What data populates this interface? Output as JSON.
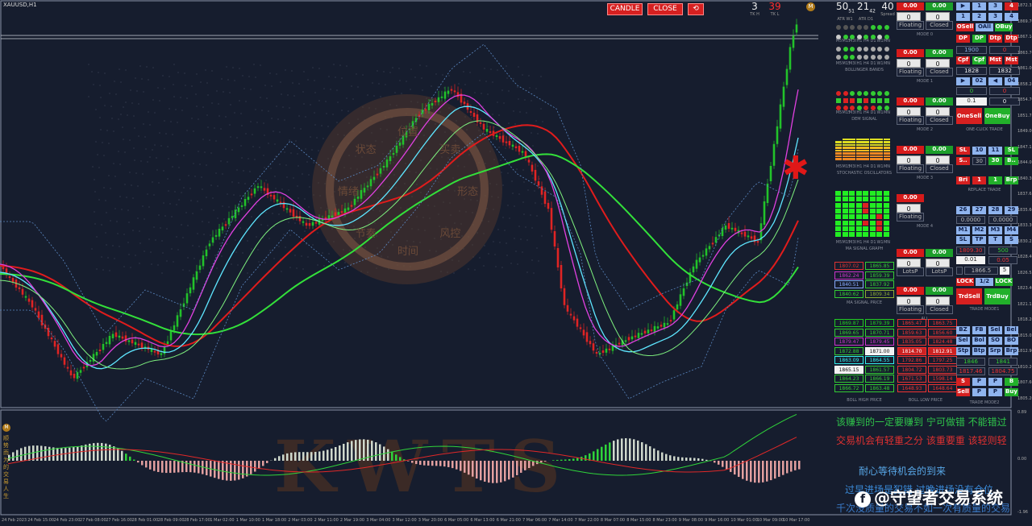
{
  "symbol": "XAUUSD,H1",
  "toolbar": {
    "candle": "CANDLE",
    "close": "CLOSE"
  },
  "stats": [
    {
      "big": "50",
      "sub": "51",
      "lbl": "ATR W1",
      "color": "white"
    },
    {
      "big": "21",
      "sub": "42",
      "lbl": "ATR D1",
      "color": "white"
    },
    {
      "big": "40",
      "sub": "",
      "lbl": "Spread",
      "color": "white"
    },
    {
      "big": "3",
      "sub": "",
      "lbl": "TK H",
      "color": "white"
    },
    {
      "big": "39",
      "sub": "",
      "lbl": "TK L",
      "color": "red"
    }
  ],
  "modes": [
    {
      "red": "0.00",
      "green": "0.00",
      "a": "0",
      "b": "0",
      "float": "Floating",
      "closed": "Closed",
      "label": "MODE 0"
    },
    {
      "red": "0.00",
      "green": "0.00",
      "a": "0",
      "b": "0",
      "float": "Floating",
      "closed": "Closed",
      "label": "MODE 1"
    },
    {
      "red": "0.00",
      "green": "0.00",
      "a": "0",
      "b": "0",
      "float": "Floating",
      "closed": "Closed",
      "label": "MODE 2"
    },
    {
      "red": "0.00",
      "green": "0.00",
      "a": "0",
      "b": "0",
      "float": "Floating",
      "closed": "Closed",
      "label": "MODE 3"
    },
    {
      "red": "0.00",
      "green": "",
      "a": "0",
      "b": "",
      "float": "Floating",
      "closed": "",
      "label": "MODE 4"
    },
    {
      "red": "0.00",
      "green": "0.00",
      "a": "0",
      "b": "0",
      "float": "LotsP",
      "closed": "LotsP",
      "label": ""
    },
    {
      "red": "0.00",
      "green": "0.00",
      "a": "0",
      "b": "0",
      "float": "Floating",
      "closed": "Closed",
      "label": "ALL"
    }
  ],
  "section_labels": {
    "ma": "BOLLINGER BANDS",
    "dem": "DEM  SIGNAL",
    "stoch": "STOCHASTIC OSCILLATORS",
    "graph": "MA SIGNAL GRAPH",
    "price": "MA SIGNAL PRICE",
    "bh": "BOLL HIGH PRICE",
    "bl": "BOLL LOW PRICE",
    "oneclick": "ONE-CLICK  TRADE",
    "replace": "REPLACE  TRADE",
    "trade1": "TRADE MODE1",
    "trade2": "TRADE MODE2"
  },
  "tf_labels": [
    "M5",
    "M15",
    "M30",
    "H1",
    "H4",
    "D1",
    "W1",
    "MN"
  ],
  "right": {
    "row1": [
      "▶",
      "1",
      "3",
      "4"
    ],
    "row2": [
      "1",
      "2",
      "3",
      "4"
    ],
    "row3": [
      "OSell",
      "OAll",
      "OBuy"
    ],
    "row4": [
      "DP",
      "DP",
      "Dtp",
      "Dtp"
    ],
    "v1900": "1900",
    "v0a": "0",
    "v1828": "1828",
    "v1832": "1832",
    "row5": [
      "Cpf",
      "Cpf",
      "Mst",
      "Mst"
    ],
    "row6": [
      "▶",
      "02",
      "◀",
      "04"
    ],
    "v0b": "0",
    "v0c": "0",
    "v01": "0.1",
    "v0d": "0",
    "onesell": "OneSell",
    "onebuy": "OneBuy",
    "sl": [
      "SL",
      "10",
      "11",
      "SL"
    ],
    "s2": [
      "S..",
      "30",
      "30",
      "B.."
    ],
    "s3": [
      "Bri",
      "1",
      "1",
      "Brp"
    ],
    "m1": [
      "26",
      "27",
      "28",
      "29"
    ],
    "z1": "0.0000",
    "z2": "0.0000",
    "m2": [
      "M1",
      "M2",
      "M3",
      "M4"
    ],
    "m3": [
      "SL",
      "TP",
      "T",
      "S"
    ],
    "v180930": "1809.30",
    "v500": "500",
    "v001": "0.01",
    "v005": "0.05",
    "v18665": "1866.5",
    "v5": "5",
    "lock": [
      "LOCK",
      "1/2",
      "LOCK"
    ],
    "trdsell": "TrdSell",
    "trdbuy": "TrdBuy",
    "t2a": [
      "BZ",
      "FB",
      "Sel",
      "Bel"
    ],
    "t2b": [
      "Sel",
      "Bol",
      "SO",
      "BO"
    ],
    "t2c": [
      "Stp",
      "Btp",
      "Srp",
      "Brp"
    ],
    "v1846": "1846",
    "v1841": "1841",
    "v181746": "1817.46",
    "v180475": "1804.75",
    "t2d": [
      "S",
      "P",
      "P",
      "B"
    ],
    "t2e": [
      "Sell",
      "P",
      "P",
      "Buy"
    ]
  },
  "ma_price": [
    [
      "1807.02",
      "1865.85"
    ],
    [
      "1862.24",
      "1859.39"
    ],
    [
      "1840.51",
      "1837.92"
    ],
    [
      "1840.62",
      "1809.34"
    ]
  ],
  "boll_high": [
    [
      "1869.87",
      "1879.39"
    ],
    [
      "1869.65",
      "1870.71"
    ],
    [
      "1879.47",
      "1879.45"
    ],
    [
      "1872.88",
      "1871.00"
    ],
    [
      "1863.09",
      "1864.55"
    ],
    [
      "1865.15",
      "1861.57"
    ],
    [
      "1864.23",
      "1866.19"
    ],
    [
      "1866.72",
      "1863.48"
    ]
  ],
  "boll_low": [
    [
      "1865.47",
      "1863.75"
    ],
    [
      "1859.63",
      "1856.60"
    ],
    [
      "1835.05",
      "1824.48"
    ],
    [
      "1814.70",
      "1812.91"
    ],
    [
      "1792.86",
      "1797.25"
    ],
    [
      "1804.72",
      "1803.73"
    ],
    [
      "1671.53",
      "1598.14"
    ],
    [
      "1648.93",
      "1648.64"
    ]
  ],
  "y_axis": [
    "1872.35",
    "1869.70",
    "1867.14",
    "1863.76",
    "1861.00",
    "1858.24",
    "1854.70",
    "1851.75",
    "1849.00",
    "1847.15",
    "1844.06",
    "1840.30",
    "1837.65",
    "1835.60",
    "1833.30",
    "1830.25",
    "1828.40",
    "1826.55",
    "1823.40",
    "1821.15",
    "1818.20",
    "1815.05",
    "1812.90",
    "1810.20",
    "1807.60",
    "1805.20"
  ],
  "x_axis": [
    "24 Feb 2023",
    "24 Feb 15:00",
    "24 Feb 23:00",
    "27 Feb 08:00",
    "27 Feb 16:00",
    "28 Feb 01:00",
    "28 Feb 09:00",
    "28 Feb 17:00",
    "1 Mar 02:00",
    "1 Mar 10:00",
    "1 Mar 18:00",
    "2 Mar 03:00",
    "2 Mar 11:00",
    "2 Mar 19:00",
    "3 Mar 04:00",
    "3 Mar 12:00",
    "3 Mar 20:00",
    "6 Mar 05:00",
    "6 Mar 13:00",
    "6 Mar 21:00",
    "7 Mar 06:00",
    "7 Mar 14:00",
    "7 Mar 22:00",
    "8 Mar 07:00",
    "8 Mar 15:00",
    "8 Mar 23:00",
    "9 Mar 08:00",
    "9 Mar 16:00",
    "10 Mar 01:00",
    "10 Mar 09:00",
    "10 Mar 17:00"
  ],
  "osc_axis": [
    "0.89",
    "0.00",
    "-1.96"
  ],
  "watermark": {
    "kwts": "KWTS",
    "circle": [
      "位置",
      "买卖",
      "形态",
      "风控",
      "时间",
      "节奏",
      "情绪",
      "状态"
    ],
    "vertical": "顺势而为的交易人生"
  },
  "notes": [
    {
      "text": "该赚到的一定要赚到 宁可做错 不能错过",
      "color": "#2fc44a"
    },
    {
      "text": "交易机会有轻重之分 该重要重 该轻则轻",
      "color": "#e03030"
    },
    {
      "text": "耐心等待机会的到来",
      "color": "#58a8e8"
    },
    {
      "text": "过早进场是犯错 过晚进场没有仓位",
      "color": "#3a8ad8"
    },
    {
      "text": "千次没质量的交易不如一次有质量的交易",
      "color": "#3a7ac8"
    }
  ],
  "brand": "@守望者交易系统",
  "colors": {
    "bg": "#161d2e",
    "bull": "#22c22a",
    "bear": "#e02424",
    "ma_red": "#e01c1c",
    "ma_green": "#33e03a",
    "ma_cyan": "#5ee6ff",
    "ma_magenta": "#e040e0"
  }
}
